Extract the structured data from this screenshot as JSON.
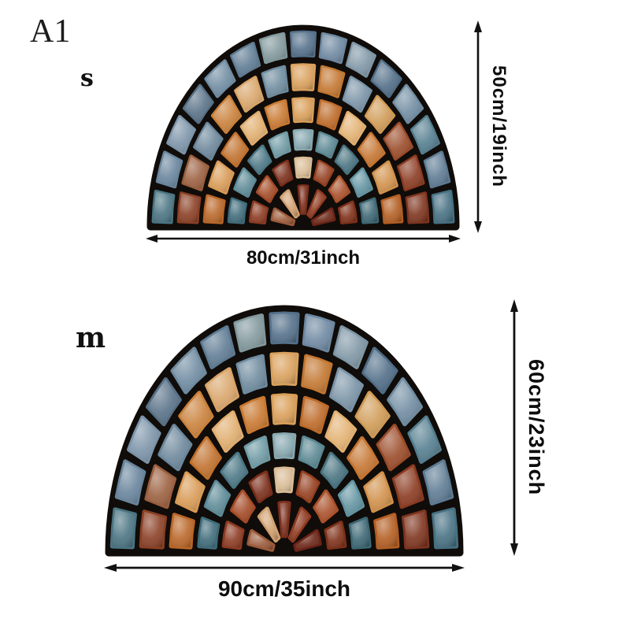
{
  "page": {
    "background": "#ffffff",
    "text_color": "#111111",
    "arrow_color": "#111111"
  },
  "labels": {
    "variant": "A1",
    "size_small": "s",
    "size_medium": "m"
  },
  "small_mat": {
    "height_label": "50cm/19inch",
    "width_label": "80cm/31inch"
  },
  "large_mat": {
    "height_label": "60cm/23inch",
    "width_label": "90cm/35inch"
  },
  "mosaic": {
    "description": "half-round stained mosaic doormat",
    "grout_color": "#100c09",
    "gap_arc": 0.05,
    "gap_radial": 0.04,
    "rings": [
      {
        "inner": 0.845,
        "outer": 1.0,
        "count": 15,
        "colors": [
          "#4a7482",
          "#68849c",
          "#7b93a8",
          "#577086",
          "#6e8aa0",
          "#5d7a92",
          "#81989c",
          "#54708a",
          "#6d87a0",
          "#7e95a4",
          "#4f6c86",
          "#6f8ba0",
          "#547d8e",
          "#5d7a92",
          "#467082"
        ]
      },
      {
        "inner": 0.675,
        "outer": 0.835,
        "count": 13,
        "colors": [
          "#8a3f24",
          "#9a5e3e",
          "#6b869a",
          "#c9803a",
          "#d8a468",
          "#6e8b9e",
          "#d9a05c",
          "#c27630",
          "#7a93a6",
          "#cf9a55",
          "#9a4a28",
          "#8a3a20",
          "#7e341e"
        ]
      },
      {
        "inner": 0.515,
        "outer": 0.665,
        "count": 11,
        "colors": [
          "#b96627",
          "#d89a55",
          "#c0702c",
          "#e0ad6e",
          "#c87830",
          "#d99e58",
          "#bd6a28",
          "#e2b070",
          "#c47430",
          "#d0904a",
          "#b35e22"
        ]
      },
      {
        "inner": 0.375,
        "outer": 0.505,
        "count": 9,
        "colors": [
          "#3f6b7a",
          "#5d8a96",
          "#4a7684",
          "#6f9aa4",
          "#87a8b0",
          "#5a8792",
          "#47727f",
          "#6293a0",
          "#3d6774"
        ]
      },
      {
        "inner": 0.235,
        "outer": 0.365,
        "count": 7,
        "colors": [
          "#8c3a22",
          "#a34a26",
          "#7a2e1a",
          "#d9bc96",
          "#943f20",
          "#a9502a",
          "#7e3018"
        ]
      },
      {
        "inner": 0.05,
        "outer": 0.225,
        "count": 5,
        "colors": [
          "#9a5a3a",
          "#d0a070",
          "#7a2e1c",
          "#8e3a20",
          "#6a2416"
        ]
      }
    ]
  }
}
